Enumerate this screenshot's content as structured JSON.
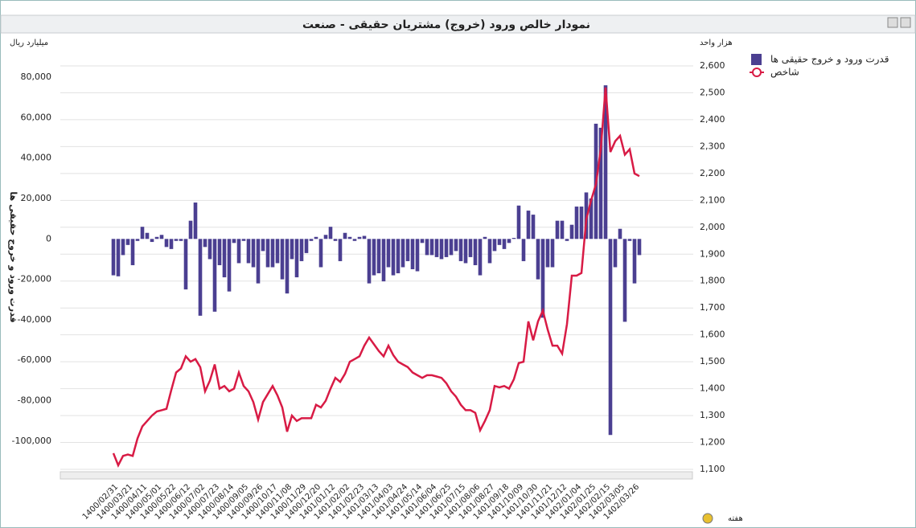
{
  "chart_data": {
    "type": "bar_line",
    "title": "نمودار خالص ورود (خروج) مشتریان حقیقی - صنعت",
    "y_unit": "میلیارد ریال",
    "y2_unit": "هزار واحد",
    "y_label": "قدرت ورود و خروج حقیقی ها",
    "x_label": "هفته",
    "categories": [
      "1400/02/31",
      null,
      null,
      "1400/03/21",
      null,
      null,
      "1400/04/11",
      null,
      null,
      "1400/05/01",
      null,
      null,
      "1400/05/22",
      null,
      null,
      "1400/06/12",
      null,
      null,
      "1400/07/02",
      null,
      null,
      "1400/07/23",
      null,
      null,
      "1400/08/14",
      null,
      null,
      "1400/09/05",
      null,
      null,
      "1400/09/26",
      null,
      null,
      "1400/10/17",
      null,
      null,
      "1400/11/08",
      null,
      null,
      "1400/11/29",
      null,
      null,
      "1400/12/20",
      null,
      null,
      "1401/01/12",
      null,
      null,
      "1401/02/02",
      null,
      null,
      "1401/02/23",
      null,
      null,
      "1401/03/13",
      null,
      null,
      "1401/04/03",
      null,
      null,
      "1401/04/24",
      null,
      null,
      "1401/05/14",
      null,
      null,
      "1401/06/04",
      null,
      null,
      "1401/06/25",
      null,
      null,
      "1401/07/15",
      null,
      null,
      "1401/08/06",
      null,
      null,
      "1401/08/27",
      null,
      null,
      "1401/09/18",
      null,
      null,
      "1401/10/09",
      null,
      null,
      "1401/10/30",
      null,
      null,
      "1401/11/21",
      null,
      null,
      "1401/12/12",
      null,
      null,
      "1402/01/04",
      null,
      null,
      "1402/01/25",
      null,
      null,
      "1402/02/15",
      null,
      null,
      "1402/03/05",
      null,
      null,
      "1402/03/26",
      null
    ],
    "series": [
      {
        "name": "قدرت ورود و خروج حقیقی ها",
        "color": "#4b3f91",
        "kind": "bar",
        "values": [
          -18000,
          -18500,
          -8000,
          -3000,
          -13000,
          -1000,
          6000,
          3000,
          -1500,
          1000,
          2000,
          -4000,
          -5000,
          -1000,
          -1000,
          -25000,
          9000,
          18000,
          -38000,
          -4000,
          -10000,
          -36000,
          -13000,
          -19000,
          -26000,
          -2000,
          -12000,
          -1000,
          -12000,
          -14000,
          -22000,
          -6000,
          -14000,
          -14000,
          -12000,
          -20000,
          -27000,
          -10000,
          -19000,
          -11000,
          -7000,
          -1000,
          1000,
          -14000,
          2000,
          6000,
          -1000,
          -11000,
          3000,
          1000,
          -1000,
          1000,
          1500,
          -22000,
          -18000,
          -17000,
          -21000,
          -14000,
          -18000,
          -17000,
          -14000,
          -11000,
          -15000,
          -16000,
          -2000,
          -8000,
          -8000,
          -9000,
          -10000,
          -9000,
          -8000,
          -6000,
          -11000,
          -12000,
          -9000,
          -13000,
          -18000,
          1000,
          -12000,
          -6000,
          -3000,
          -5000,
          -2000,
          500,
          16500,
          -11000,
          14000,
          12000,
          -20000,
          -39000,
          -14000,
          -14000,
          9000,
          9000,
          -1000,
          7000,
          16000,
          16000,
          23000,
          20000,
          57000,
          55000,
          76000,
          -97000,
          -14000,
          5000,
          -41000,
          -1000,
          -22000,
          -8000
        ]
      },
      {
        "name": "شاخص",
        "color": "#d81b45",
        "kind": "line",
        "axis": "y2",
        "values": [
          1160,
          1115,
          1150,
          1155,
          1150,
          1215,
          1260,
          1280,
          1300,
          1315,
          1320,
          1325,
          1395,
          1460,
          1475,
          1520,
          1500,
          1510,
          1480,
          1390,
          1430,
          1490,
          1400,
          1410,
          1390,
          1400,
          1460,
          1410,
          1390,
          1350,
          1285,
          1350,
          1380,
          1410,
          1375,
          1330,
          1240,
          1300,
          1280,
          1290,
          1290,
          1290,
          1340,
          1330,
          1355,
          1400,
          1440,
          1425,
          1455,
          1500,
          1510,
          1520,
          1560,
          1590,
          1565,
          1540,
          1520,
          1560,
          1525,
          1500,
          1490,
          1480,
          1460,
          1450,
          1440,
          1450,
          1450,
          1445,
          1440,
          1420,
          1390,
          1370,
          1340,
          1320,
          1320,
          1310,
          1245,
          1280,
          1320,
          1410,
          1405,
          1410,
          1400,
          1435,
          1495,
          1500,
          1650,
          1580,
          1650,
          1690,
          1620,
          1560,
          1560,
          1530,
          1640,
          1820,
          1820,
          1830,
          2030,
          2100,
          2160,
          2290,
          2520,
          2280,
          2320,
          2340,
          2270,
          2290,
          2200,
          2190
        ]
      }
    ],
    "ylim": [
      -114000,
      85600
    ],
    "yticks": [
      {
        "value": -100000,
        "label": "-100,000"
      },
      {
        "value": -80000,
        "label": "-80,000"
      },
      {
        "value": -60000,
        "label": "-60,000"
      },
      {
        "value": -40000,
        "label": "-40,000"
      },
      {
        "value": -20000,
        "label": "-20,000"
      },
      0,
      {
        "value": 20000,
        "label": "20,000"
      },
      {
        "value": 40000,
        "label": "40,000"
      },
      {
        "value": 60000,
        "label": "60,000"
      },
      {
        "value": 80000,
        "label": "80,000"
      }
    ],
    "y2lim": [
      1100,
      2600
    ],
    "y2ticks": [
      {
        "value": 1100,
        "label": "1,100"
      },
      {
        "value": 1200,
        "label": "1,200"
      },
      {
        "value": 1300,
        "label": "1,300"
      },
      {
        "value": 1400,
        "label": "1,400"
      },
      {
        "value": 1500,
        "label": "1,500"
      },
      {
        "value": 1600,
        "label": "1,600"
      },
      {
        "value": 1700,
        "label": "1,700"
      },
      {
        "value": 1800,
        "label": "1,800"
      },
      {
        "value": 1900,
        "label": "1,900"
      },
      {
        "value": 2000,
        "label": "2,000"
      },
      {
        "value": 2100,
        "label": "2,100"
      },
      {
        "value": 2200,
        "label": "2,200"
      },
      {
        "value": 2300,
        "label": "2,300"
      },
      {
        "value": 2400,
        "label": "2,400"
      },
      {
        "value": 2500,
        "label": "2,500"
      },
      {
        "value": 2600,
        "label": "2,600"
      }
    ],
    "grid": true,
    "legend": "top-right"
  }
}
